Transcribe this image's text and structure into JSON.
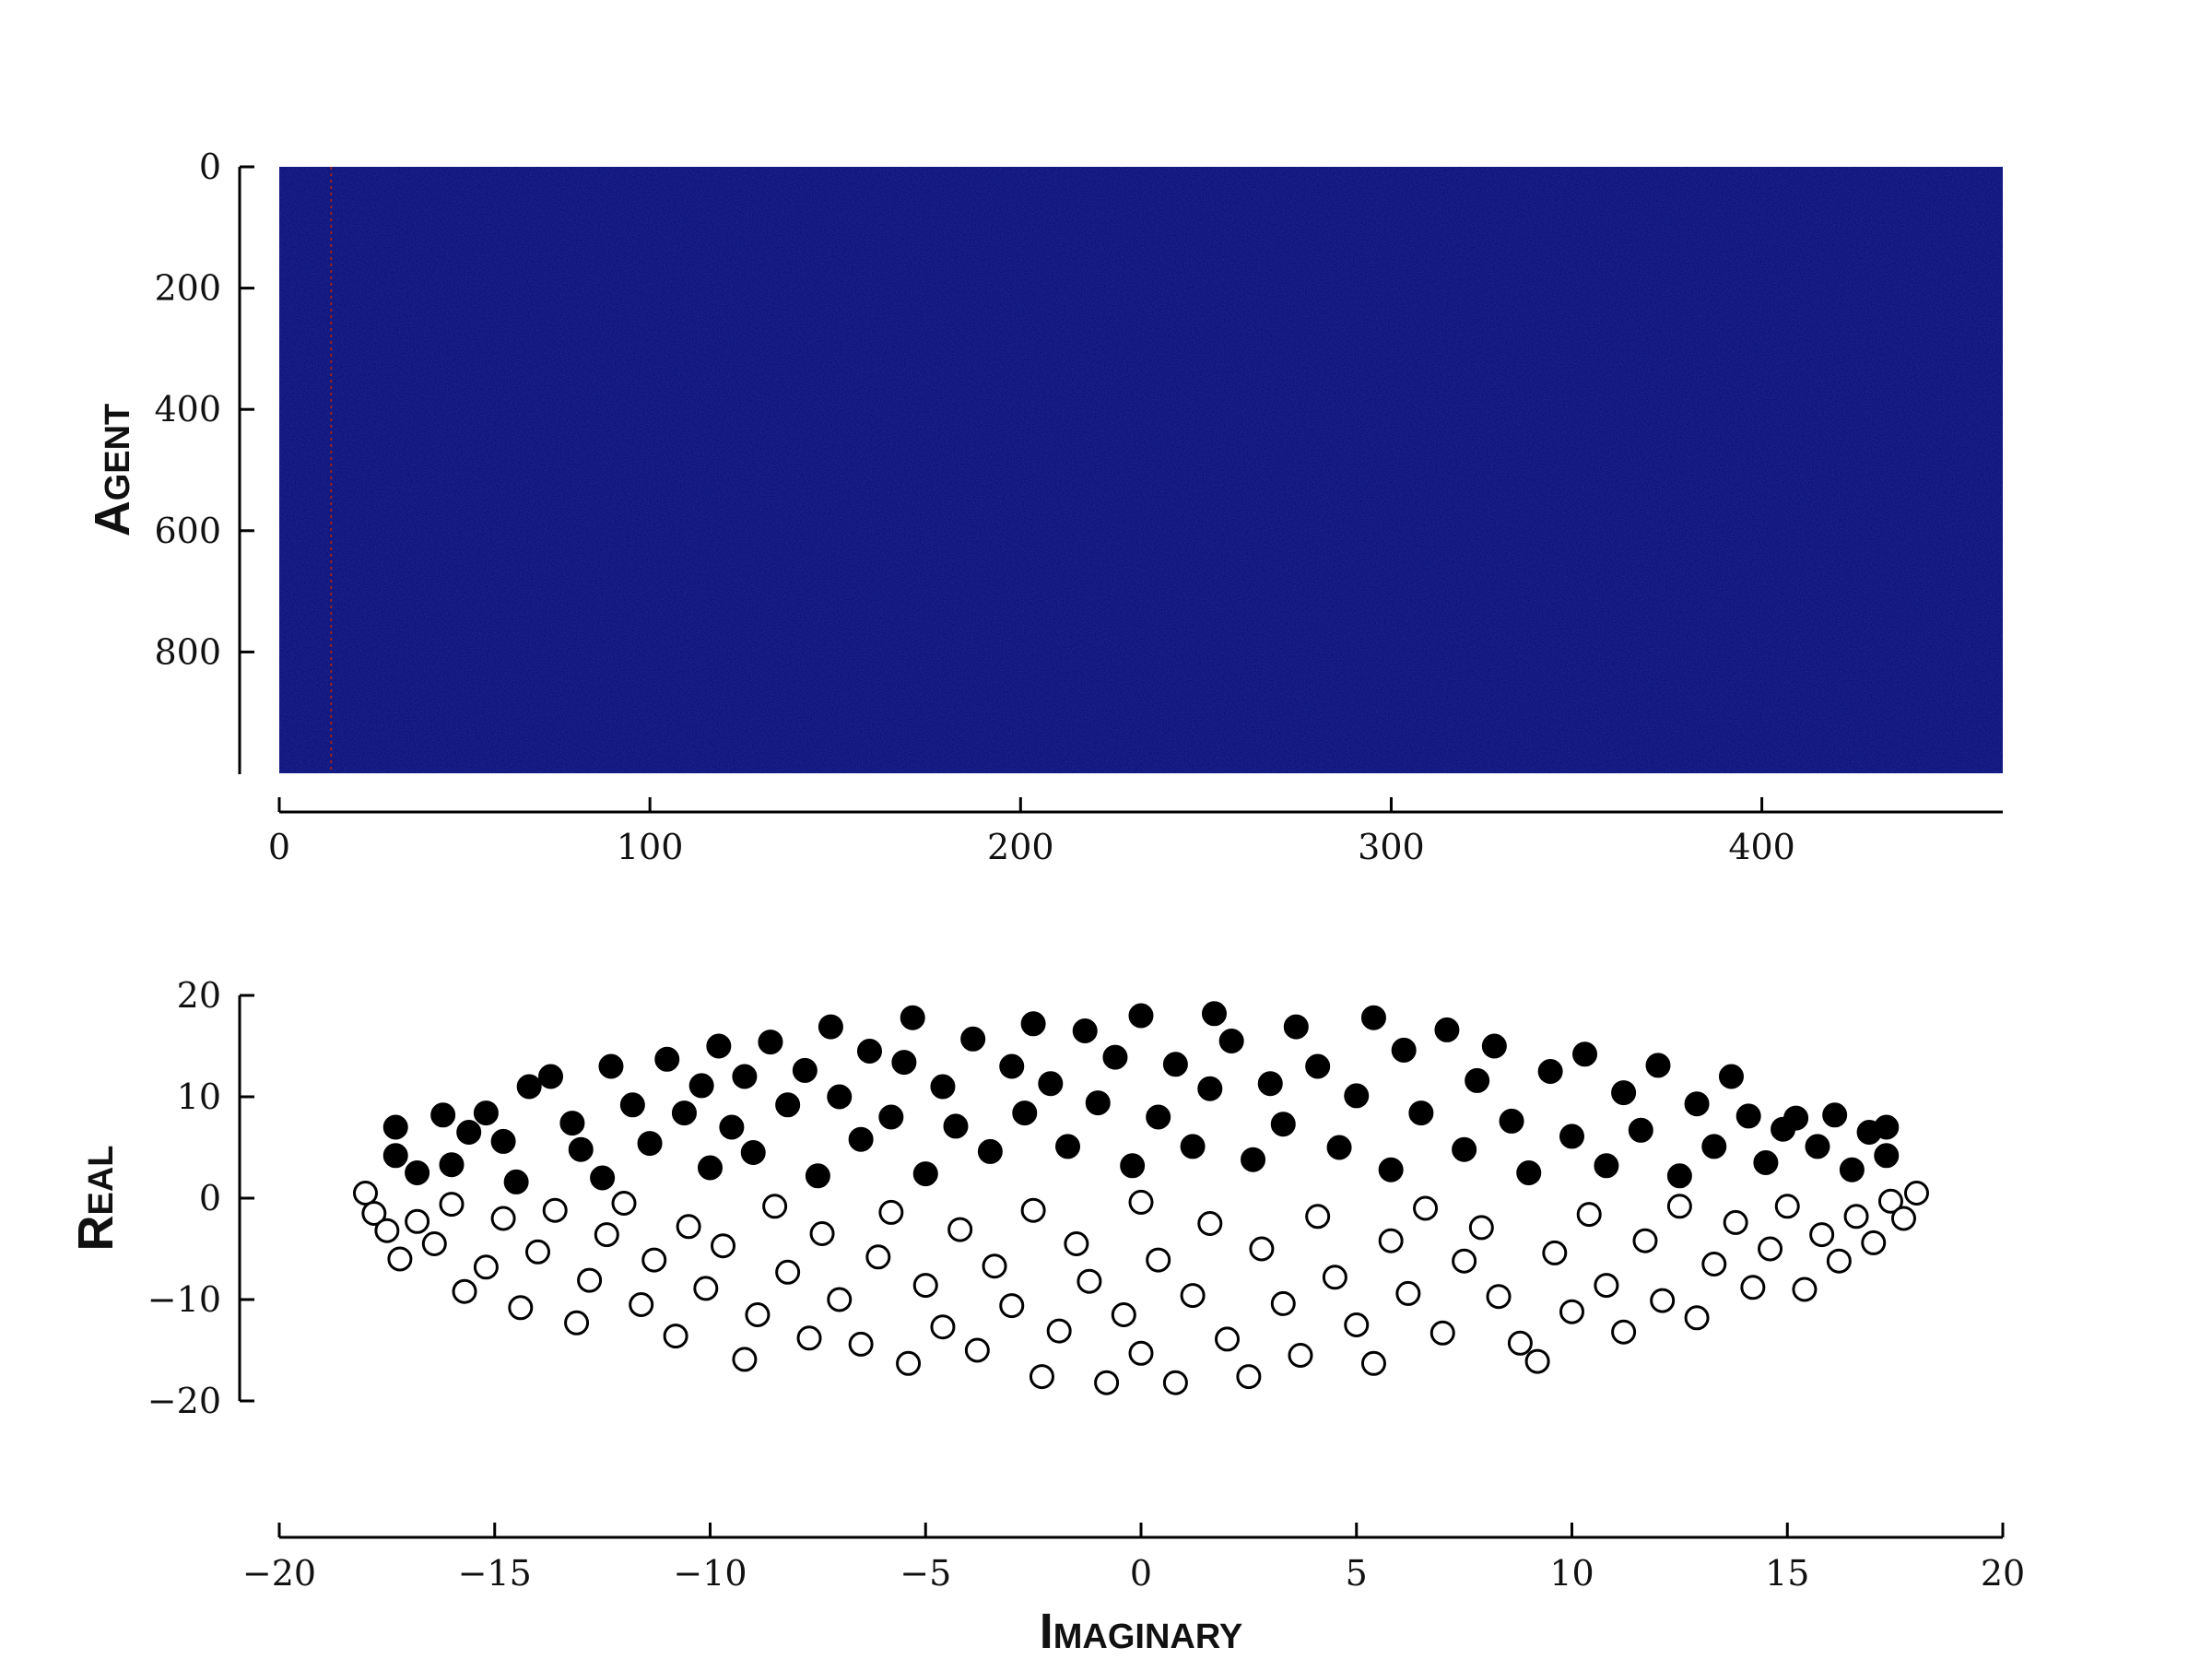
{
  "chart_data": [
    {
      "type": "heatmap",
      "title": "",
      "xlabel": "",
      "ylabel": "Agent",
      "xlim": [
        0,
        465
      ],
      "ylim": [
        0,
        1000
      ],
      "y_inverted": true,
      "xticks": [
        0,
        100,
        200,
        300,
        400
      ],
      "yticks": [
        0,
        200,
        400,
        600,
        800
      ],
      "colormap": "jet",
      "background_color": "#0b0d72",
      "highlight_column": 14,
      "highlight_color": "#a0201a",
      "grid": false
    },
    {
      "type": "scatter",
      "title": "",
      "xlabel": "Imaginary",
      "ylabel": "Real",
      "xlim": [
        -20,
        20
      ],
      "ylim": [
        -20,
        20
      ],
      "xticks": [
        -20,
        -15,
        -10,
        -5,
        0,
        5,
        10,
        15,
        20
      ],
      "yticks": [
        -20,
        -10,
        0,
        10,
        20
      ],
      "grid": false,
      "marker_color": "#000000",
      "series": [
        {
          "filled": true,
          "points": [
            [
              -17.3,
              7
            ],
            [
              -17.3,
              4.2
            ],
            [
              -16.8,
              2.5
            ],
            [
              -16.2,
              8.2
            ],
            [
              -16,
              3.3
            ],
            [
              -15.6,
              6.5
            ],
            [
              -15.2,
              8.4
            ],
            [
              -14.8,
              5.6
            ],
            [
              -14.5,
              1.6
            ],
            [
              -14.2,
              11
            ],
            [
              -13.7,
              12
            ],
            [
              -13.2,
              7.4
            ],
            [
              -13,
              4.8
            ],
            [
              -12.5,
              2
            ],
            [
              -12.3,
              13
            ],
            [
              -11.8,
              9.2
            ],
            [
              -11.4,
              5.4
            ],
            [
              -11,
              13.7
            ],
            [
              -10.6,
              8.4
            ],
            [
              -10.2,
              11.1
            ],
            [
              -10,
              3
            ],
            [
              -9.8,
              15
            ],
            [
              -9.5,
              7
            ],
            [
              -9.2,
              12
            ],
            [
              -9,
              4.5
            ],
            [
              -8.6,
              15.4
            ],
            [
              -8.2,
              9.2
            ],
            [
              -7.8,
              12.6
            ],
            [
              -7.5,
              2.2
            ],
            [
              -7.2,
              16.9
            ],
            [
              -7,
              10
            ],
            [
              -6.5,
              5.8
            ],
            [
              -6.3,
              14.5
            ],
            [
              -5.8,
              8
            ],
            [
              -5.5,
              13.4
            ],
            [
              -5.3,
              17.8
            ],
            [
              -5,
              2.4
            ],
            [
              -4.6,
              11
            ],
            [
              -4.3,
              7.1
            ],
            [
              -3.9,
              15.7
            ],
            [
              -3.5,
              4.6
            ],
            [
              -3,
              13
            ],
            [
              -2.7,
              8.4
            ],
            [
              -2.5,
              17.2
            ],
            [
              -2.1,
              11.3
            ],
            [
              -1.7,
              5.1
            ],
            [
              -1.3,
              16.5
            ],
            [
              -1,
              9.4
            ],
            [
              -0.6,
              13.9
            ],
            [
              -0.2,
              3.2
            ],
            [
              0,
              18
            ],
            [
              0.4,
              8
            ],
            [
              0.8,
              13.2
            ],
            [
              1.2,
              5.1
            ],
            [
              1.6,
              10.8
            ],
            [
              1.7,
              18.2
            ],
            [
              2.1,
              15.5
            ],
            [
              2.6,
              3.8
            ],
            [
              3,
              11.3
            ],
            [
              3.3,
              7.3
            ],
            [
              3.6,
              16.9
            ],
            [
              4.1,
              13
            ],
            [
              4.6,
              5
            ],
            [
              5,
              10.1
            ],
            [
              5.4,
              17.8
            ],
            [
              5.8,
              2.8
            ],
            [
              6.1,
              14.6
            ],
            [
              6.5,
              8.4
            ],
            [
              7.1,
              16.6
            ],
            [
              7.5,
              4.8
            ],
            [
              7.8,
              11.6
            ],
            [
              8.2,
              15
            ],
            [
              8.6,
              7.6
            ],
            [
              9,
              2.5
            ],
            [
              9.5,
              12.5
            ],
            [
              10,
              6.1
            ],
            [
              10.3,
              14.2
            ],
            [
              10.8,
              3.2
            ],
            [
              11.2,
              10.4
            ],
            [
              11.6,
              6.7
            ],
            [
              12,
              13.1
            ],
            [
              12.5,
              2.2
            ],
            [
              12.9,
              9.3
            ],
            [
              13.3,
              5.1
            ],
            [
              13.7,
              12
            ],
            [
              14.1,
              8.1
            ],
            [
              14.5,
              3.5
            ],
            [
              14.9,
              6.8
            ],
            [
              15.2,
              7.9
            ],
            [
              15.7,
              5.1
            ],
            [
              16.1,
              8.2
            ],
            [
              16.5,
              2.8
            ],
            [
              16.9,
              6.5
            ],
            [
              17.3,
              7
            ],
            [
              17.3,
              4.2
            ]
          ]
        },
        {
          "filled": false,
          "points": [
            [
              -18,
              0.5
            ],
            [
              -17.8,
              -1.5
            ],
            [
              -17.5,
              -3.2
            ],
            [
              -17.2,
              -6
            ],
            [
              -16.8,
              -2.3
            ],
            [
              -16.4,
              -4.5
            ],
            [
              -16,
              -0.6
            ],
            [
              -15.7,
              -9.2
            ],
            [
              -15.2,
              -6.8
            ],
            [
              -14.8,
              -2
            ],
            [
              -14.4,
              -10.8
            ],
            [
              -14,
              -5.3
            ],
            [
              -13.6,
              -1.2
            ],
            [
              -13.1,
              -12.3
            ],
            [
              -12.8,
              -8.1
            ],
            [
              -12.4,
              -3.6
            ],
            [
              -12,
              -0.5
            ],
            [
              -11.6,
              -10.5
            ],
            [
              -11.3,
              -6.1
            ],
            [
              -10.8,
              -13.6
            ],
            [
              -10.5,
              -2.8
            ],
            [
              -10.1,
              -8.9
            ],
            [
              -9.7,
              -4.7
            ],
            [
              -9.2,
              -15.9
            ],
            [
              -8.9,
              -11.5
            ],
            [
              -8.5,
              -0.8
            ],
            [
              -8.2,
              -7.3
            ],
            [
              -7.7,
              -13.8
            ],
            [
              -7.4,
              -3.5
            ],
            [
              -7,
              -10
            ],
            [
              -6.5,
              -14.4
            ],
            [
              -6.1,
              -5.8
            ],
            [
              -5.8,
              -1.4
            ],
            [
              -5.4,
              -16.3
            ],
            [
              -5,
              -8.6
            ],
            [
              -4.6,
              -12.7
            ],
            [
              -4.2,
              -3.1
            ],
            [
              -3.8,
              -15
            ],
            [
              -3.4,
              -6.7
            ],
            [
              -3,
              -10.6
            ],
            [
              -2.5,
              -1.2
            ],
            [
              -2.3,
              -17.6
            ],
            [
              -1.9,
              -13.1
            ],
            [
              -1.5,
              -4.5
            ],
            [
              -1.2,
              -8.2
            ],
            [
              -0.8,
              -18.2
            ],
            [
              -0.4,
              -11.5
            ],
            [
              0,
              -0.4
            ],
            [
              0,
              -15.3
            ],
            [
              0.4,
              -6.1
            ],
            [
              0.8,
              -18.2
            ],
            [
              1.2,
              -9.6
            ],
            [
              1.6,
              -2.5
            ],
            [
              2,
              -13.9
            ],
            [
              2.5,
              -17.6
            ],
            [
              2.8,
              -5
            ],
            [
              3.3,
              -10.4
            ],
            [
              3.7,
              -15.5
            ],
            [
              4.1,
              -1.8
            ],
            [
              4.5,
              -7.8
            ],
            [
              5,
              -12.5
            ],
            [
              5.4,
              -16.3
            ],
            [
              5.8,
              -4.2
            ],
            [
              6.2,
              -9.4
            ],
            [
              6.6,
              -1
            ],
            [
              7,
              -13.3
            ],
            [
              7.5,
              -6.2
            ],
            [
              7.9,
              -2.9
            ],
            [
              8.3,
              -9.7
            ],
            [
              8.8,
              -14.3
            ],
            [
              9.2,
              -16.1
            ],
            [
              9.6,
              -5.4
            ],
            [
              10,
              -11.2
            ],
            [
              10.4,
              -1.6
            ],
            [
              10.8,
              -8.6
            ],
            [
              11.2,
              -13.2
            ],
            [
              11.7,
              -4.2
            ],
            [
              12.1,
              -10.1
            ],
            [
              12.5,
              -0.8
            ],
            [
              12.9,
              -11.8
            ],
            [
              13.3,
              -6.5
            ],
            [
              13.8,
              -2.4
            ],
            [
              14.2,
              -8.8
            ],
            [
              14.6,
              -5
            ],
            [
              15,
              -0.8
            ],
            [
              15.4,
              -9
            ],
            [
              15.8,
              -3.6
            ],
            [
              16.2,
              -6.2
            ],
            [
              16.6,
              -1.8
            ],
            [
              17,
              -4.4
            ],
            [
              17.4,
              -0.3
            ],
            [
              17.7,
              -2
            ],
            [
              18,
              0.5
            ]
          ]
        }
      ]
    }
  ]
}
